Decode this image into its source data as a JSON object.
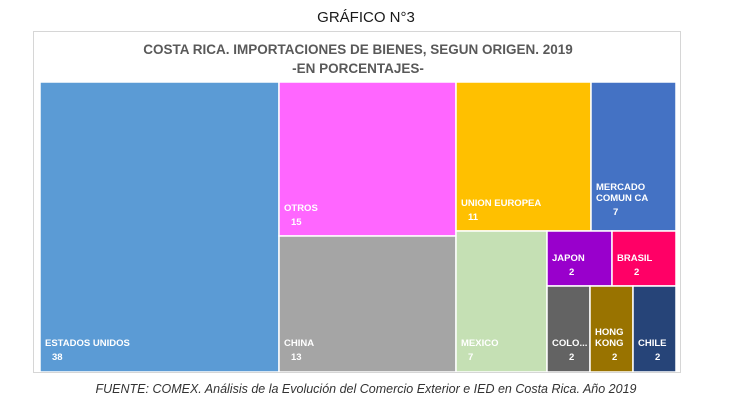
{
  "header": {
    "figure_label": "GRÁFICO N°3"
  },
  "footer": {
    "source": "FUENTE: COMEX. Análisis de la Evolución del Comercio Exterior e IED en Costa Rica. Año 2019"
  },
  "chart_data": {
    "type": "treemap",
    "title": "COSTA RICA. IMPORTACIONES DE BIENES, SEGUN ORIGEN. 2019",
    "subtitle": "-EN PORCENTAJES-",
    "cells": [
      {
        "label": "ESTADOS UNIDOS",
        "value": 38,
        "color": "#5b9bd5"
      },
      {
        "label": "OTROS",
        "value": 15,
        "color": "#ff66ff"
      },
      {
        "label": "CHINA",
        "value": 13,
        "color": "#a5a5a5"
      },
      {
        "label": "UNION EUROPEA",
        "value": 11,
        "color": "#ffc000"
      },
      {
        "label": "MERCADO COMUN CA",
        "value": 7,
        "color": "#4472c4"
      },
      {
        "label": "MEXICO",
        "value": 7,
        "color": "#c5e0b4"
      },
      {
        "label": "JAPON",
        "value": 2,
        "color": "#9900cc"
      },
      {
        "label": "BRASIL",
        "value": 2,
        "color": "#ff0066"
      },
      {
        "label": "COLO...",
        "value": 2,
        "color": "#636363"
      },
      {
        "label": "HONG KONG",
        "value": 2,
        "color": "#997300"
      },
      {
        "label": "CHILE",
        "value": 2,
        "color": "#264478"
      }
    ]
  }
}
